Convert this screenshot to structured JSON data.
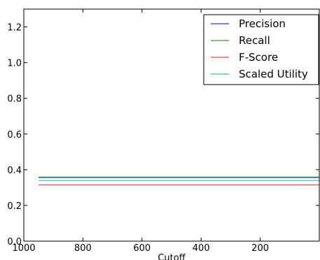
{
  "chart_data": {
    "type": "line",
    "xlabel": "Cutoff",
    "ylabel": "",
    "xlim": [
      1000,
      0
    ],
    "ylim": [
      0,
      1.3
    ],
    "x_range": [
      950,
      0
    ],
    "xticks": [
      1000,
      800,
      600,
      400,
      200
    ],
    "yticks": [
      0.0,
      0.2,
      0.4,
      0.6,
      0.8,
      1.0,
      1.2
    ],
    "xtick_labels": [
      "1000",
      "800",
      "600",
      "400",
      "200"
    ],
    "ytick_labels": [
      "0.0",
      "0.2",
      "0.4",
      "0.6",
      "0.8",
      "1.0",
      "1.2"
    ],
    "legend_position": "top-right",
    "grid": false,
    "series": [
      {
        "name": "Precision",
        "color": "#3333cc",
        "x": [
          950,
          0
        ],
        "y": [
          0.356,
          0.356
        ]
      },
      {
        "name": "Recall",
        "color": "#339933",
        "x": [
          950,
          0
        ],
        "y": [
          0.359,
          0.359
        ]
      },
      {
        "name": "F-Score",
        "color": "#dd4444",
        "x": [
          950,
          0
        ],
        "y": [
          0.315,
          0.315
        ]
      },
      {
        "name": "Scaled Utility",
        "color": "#33bbbb",
        "x": [
          950,
          0
        ],
        "y": [
          0.34,
          0.34
        ]
      }
    ]
  }
}
